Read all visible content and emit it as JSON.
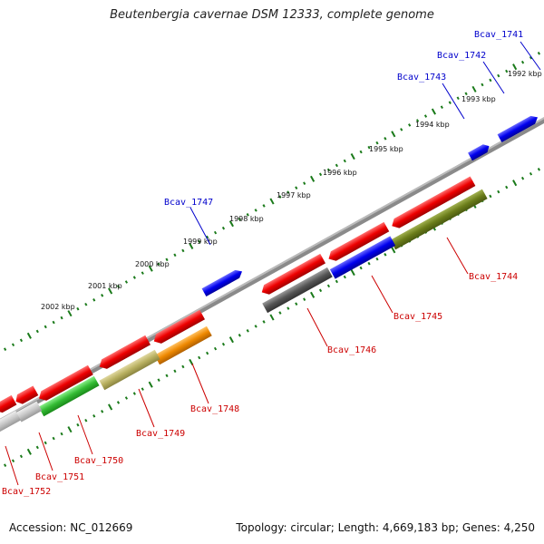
{
  "title": "Beutenbergia cavernae DSM 12333, complete genome",
  "footer": {
    "accession": "Accession: NC_012669",
    "summary": "Topology: circular; Length: 4,669,183 bp; Genes: 4,250"
  },
  "kbp_labels": [
    {
      "id": "1992",
      "text": "1992 kbp"
    },
    {
      "id": "1993",
      "text": "1993 kbp"
    },
    {
      "id": "1994",
      "text": "1994 kbp"
    },
    {
      "id": "1995",
      "text": "1995 kbp"
    },
    {
      "id": "1996",
      "text": "1996 kbp"
    },
    {
      "id": "1997",
      "text": "1997 kbp"
    },
    {
      "id": "1998",
      "text": "1998 kbp"
    },
    {
      "id": "1999",
      "text": "1999 kbp"
    },
    {
      "id": "2000",
      "text": "2000 kbp"
    },
    {
      "id": "2001",
      "text": "2001 kbp"
    },
    {
      "id": "2002",
      "text": "2002 kbp"
    }
  ],
  "gene_labels": [
    {
      "id": "1741",
      "text": "Bcav_1741",
      "color": "#0000cc"
    },
    {
      "id": "1742",
      "text": "Bcav_1742",
      "color": "#0000cc"
    },
    {
      "id": "1743",
      "text": "Bcav_1743",
      "color": "#0000cc"
    },
    {
      "id": "1747",
      "text": "Bcav_1747",
      "color": "#0000cc"
    },
    {
      "id": "1744",
      "text": "Bcav_1744",
      "color": "#cc0000"
    },
    {
      "id": "1745",
      "text": "Bcav_1745",
      "color": "#cc0000"
    },
    {
      "id": "1746",
      "text": "Bcav_1746",
      "color": "#cc0000"
    },
    {
      "id": "1748",
      "text": "Bcav_1748",
      "color": "#cc0000"
    },
    {
      "id": "1749",
      "text": "Bcav_1749",
      "color": "#cc0000"
    },
    {
      "id": "1750",
      "text": "Bcav_1750",
      "color": "#cc0000"
    },
    {
      "id": "1751",
      "text": "Bcav_1751",
      "color": "#cc0000"
    },
    {
      "id": "1752",
      "text": "Bcav_1752",
      "color": "#cc0000"
    }
  ],
  "colors": {
    "backbone": "#8a8a8a",
    "tick": "#1a7a1a",
    "forward_gene": "#0000ee",
    "reverse_gene": "#ee0000",
    "olive": "#6b7d1a",
    "green": "#33bb33",
    "orange": "#ee8800",
    "khaki": "#b8b060",
    "dark_grey": "#555555",
    "light_grey": "#c8c8c8"
  }
}
